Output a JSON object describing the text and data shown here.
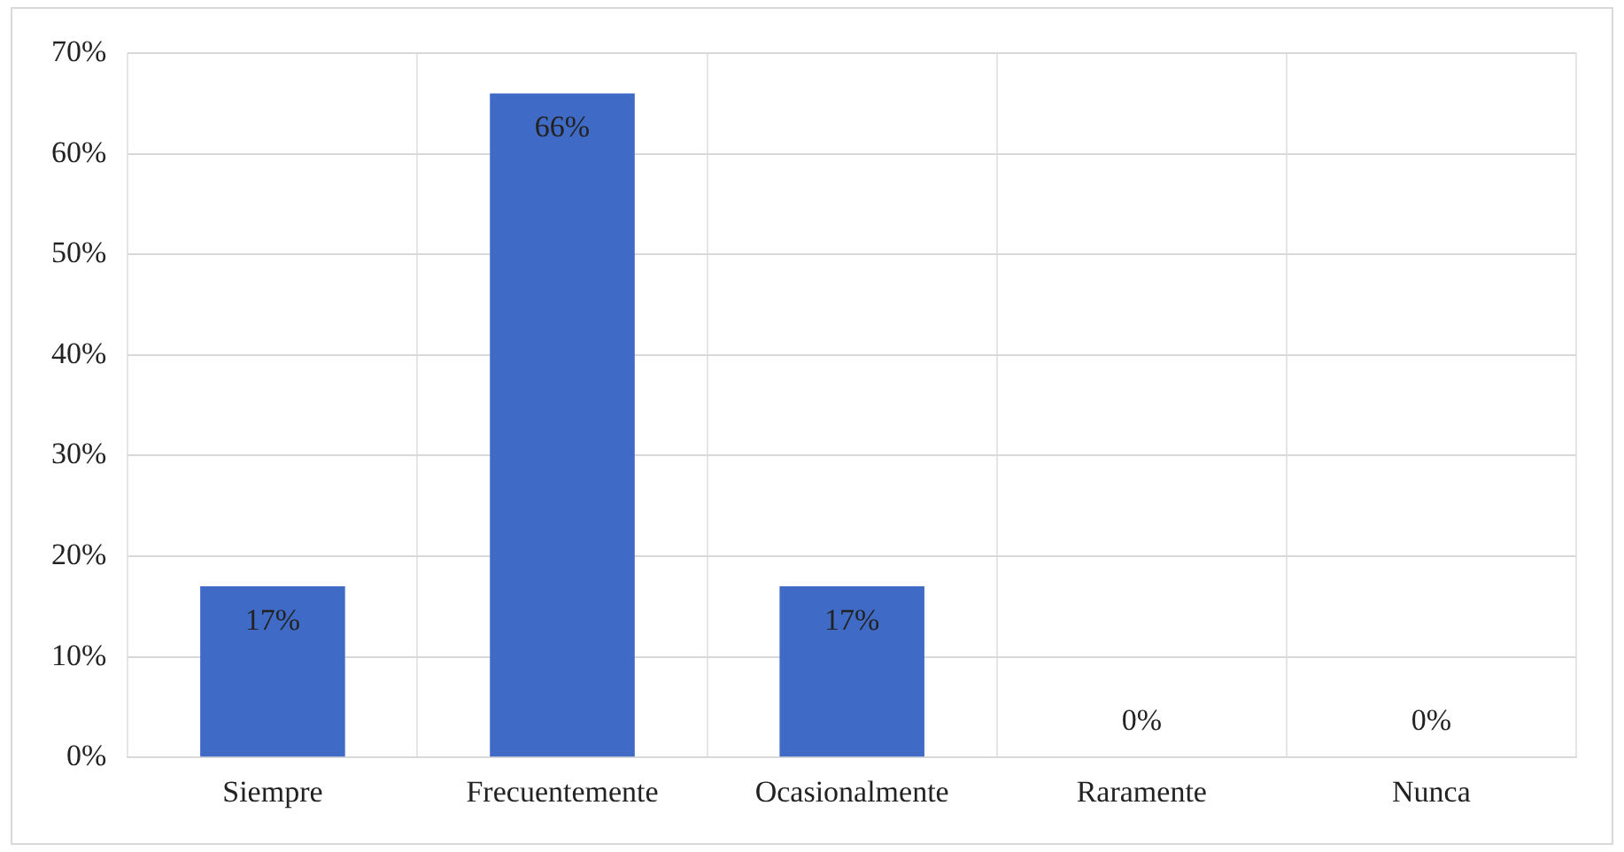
{
  "chart_data": {
    "type": "bar",
    "categories": [
      "Siempre",
      "Frecuentemente",
      "Ocasionalmente",
      "Raramente",
      "Nunca"
    ],
    "values": [
      17,
      66,
      17,
      0,
      0
    ],
    "color": "#3f6bc6",
    "value_labels": [
      "17%",
      "66%",
      "17%",
      "0%",
      "0%"
    ],
    "ylim": [
      0,
      70
    ],
    "yticks": [
      {
        "value": 0,
        "label": "0%"
      },
      {
        "value": 10,
        "label": "10%"
      },
      {
        "value": 20,
        "label": "20%"
      },
      {
        "value": 30,
        "label": "30%"
      },
      {
        "value": 40,
        "label": "40%"
      },
      {
        "value": 50,
        "label": "50%"
      },
      {
        "value": 60,
        "label": "60%"
      },
      {
        "value": 70,
        "label": "70%"
      }
    ],
    "grid": true,
    "legend": false
  }
}
